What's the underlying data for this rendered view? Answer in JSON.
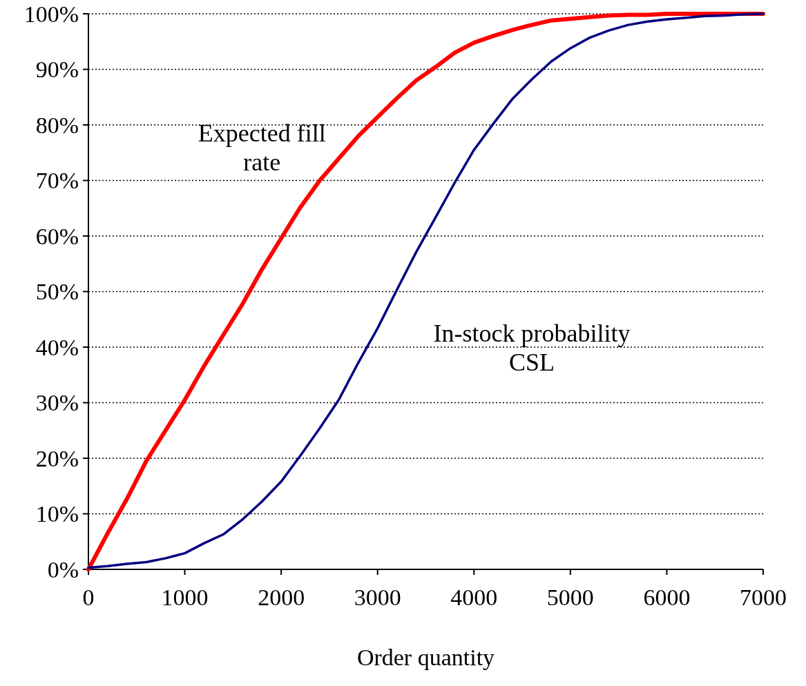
{
  "chart_data": {
    "type": "line",
    "xlabel": "Order quantity",
    "x": [
      0,
      200,
      400,
      600,
      800,
      1000,
      1200,
      1400,
      1600,
      1800,
      2000,
      2200,
      2400,
      2600,
      2800,
      3000,
      3200,
      3400,
      3600,
      3800,
      4000,
      4200,
      4400,
      4600,
      4800,
      5000,
      5200,
      5400,
      5600,
      5800,
      6000,
      6200,
      6400,
      6600,
      6800,
      7000
    ],
    "series": [
      {
        "name": "Expected fill rate",
        "color": "#ff0000",
        "values": [
          0,
          6.5,
          12.7,
          19.5,
          25,
          30.5,
          36.6,
          42.2,
          47.8,
          54,
          59.6,
          65.2,
          70,
          74,
          78,
          81.4,
          84.8,
          88,
          90.4,
          93,
          94.8,
          96,
          97.1,
          98,
          98.8,
          99.1,
          99.4,
          99.7,
          99.8,
          99.8,
          100,
          100,
          100,
          100,
          100,
          100
        ]
      },
      {
        "name": "In-stock probability CSL",
        "color": "#000080",
        "values": [
          0.3,
          0.6,
          1,
          1.3,
          2,
          2.9,
          4.7,
          6.3,
          9,
          12.2,
          15.8,
          20.5,
          25.4,
          30.6,
          37.2,
          43.4,
          50.3,
          57.1,
          63.3,
          69.6,
          75.5,
          80.2,
          84.7,
          88.2,
          91.4,
          93.8,
          95.7,
          97,
          98,
          98.6,
          99,
          99.3,
          99.6,
          99.7,
          99.9,
          100
        ]
      }
    ],
    "xlim": [
      0,
      7000
    ],
    "xticks": [
      0,
      1000,
      2000,
      3000,
      4000,
      5000,
      6000,
      7000
    ],
    "ylim": [
      0,
      100
    ],
    "yticks": [
      {
        "value": 0,
        "label": "0%"
      },
      {
        "value": 10,
        "label": "10%"
      },
      {
        "value": 20,
        "label": "20%"
      },
      {
        "value": 30,
        "label": "30%"
      },
      {
        "value": 40,
        "label": "40%"
      },
      {
        "value": 50,
        "label": "50%"
      },
      {
        "value": 60,
        "label": "60%"
      },
      {
        "value": 70,
        "label": "70%"
      },
      {
        "value": 80,
        "label": "80%"
      },
      {
        "value": 90,
        "label": "90%"
      },
      {
        "value": 100,
        "label": "100%"
      }
    ],
    "grid": "y",
    "legend": false,
    "marker": "none",
    "line_style": "solid"
  }
}
